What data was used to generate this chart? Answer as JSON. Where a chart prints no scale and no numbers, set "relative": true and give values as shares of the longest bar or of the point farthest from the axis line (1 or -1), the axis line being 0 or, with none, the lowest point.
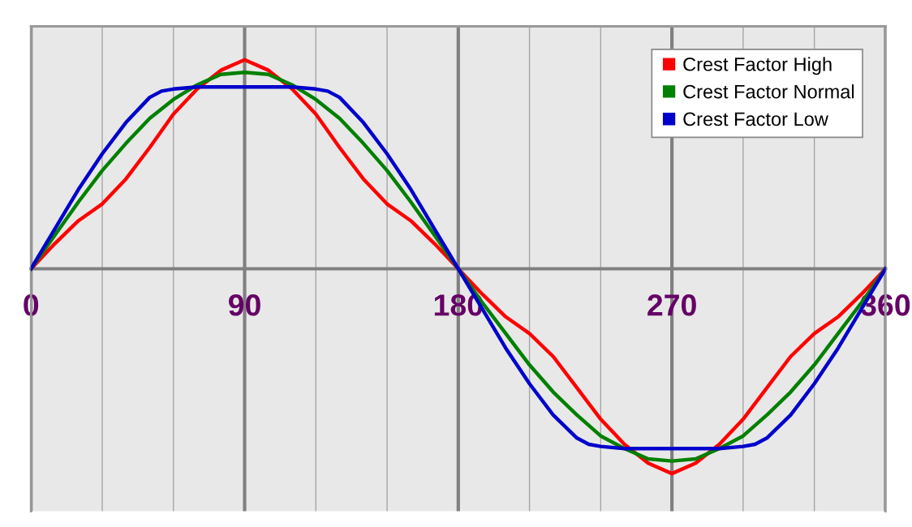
{
  "chart_data": {
    "type": "line",
    "relative": true,
    "x": [
      0,
      10,
      20,
      30,
      40,
      50,
      60,
      70,
      80,
      90,
      100,
      110,
      120,
      130,
      140,
      150,
      160,
      170,
      180,
      190,
      200,
      210,
      220,
      230,
      240,
      250,
      260,
      270,
      280,
      290,
      300,
      310,
      320,
      330,
      340,
      350,
      360
    ],
    "xlim": [
      0,
      360
    ],
    "xticks": [
      0,
      {
        "value": 30,
        "label": null
      },
      {
        "value": 60,
        "label": null
      },
      90,
      {
        "value": 120,
        "label": null
      },
      {
        "value": 150,
        "label": null
      },
      180,
      {
        "value": 210,
        "label": null
      },
      {
        "value": 240,
        "label": null
      },
      270,
      {
        "value": 300,
        "label": null
      },
      {
        "value": 330,
        "label": null
      },
      360
    ],
    "grid": "x",
    "legend": "top right",
    "line_style": "solid",
    "marker": "none",
    "series": [
      {
        "name": "Crest Factor High",
        "color": "#ff0000",
        "values": [
          0,
          0.12,
          0.23,
          0.31,
          0.43,
          0.58,
          0.74,
          0.86,
          0.95,
          1.0,
          0.95,
          0.86,
          0.74,
          0.58,
          0.43,
          0.31,
          0.23,
          0.12,
          0,
          -0.12,
          -0.23,
          -0.31,
          -0.42,
          -0.57,
          -0.72,
          -0.84,
          -0.93,
          -0.98,
          -0.93,
          -0.84,
          -0.72,
          -0.57,
          -0.42,
          -0.31,
          -0.23,
          -0.12,
          0
        ]
      },
      {
        "name": "Crest Factor Normal",
        "color": "#008000",
        "values": [
          0,
          0.16,
          0.32,
          0.47,
          0.6,
          0.72,
          0.81,
          0.88,
          0.93,
          0.94,
          0.93,
          0.88,
          0.81,
          0.72,
          0.6,
          0.47,
          0.32,
          0.16,
          0,
          -0.16,
          -0.31,
          -0.46,
          -0.59,
          -0.7,
          -0.8,
          -0.86,
          -0.91,
          -0.92,
          -0.91,
          -0.86,
          -0.8,
          -0.7,
          -0.59,
          -0.46,
          -0.31,
          -0.16,
          0
        ]
      },
      {
        "name": "Crest Factor Low",
        "color": "#0000cc",
        "x": [
          0,
          10,
          20,
          30,
          40,
          50,
          55,
          60,
          70,
          80,
          90,
          100,
          110,
          120,
          125,
          130,
          140,
          150,
          160,
          170,
          180,
          190,
          200,
          210,
          220,
          230,
          235,
          240,
          250,
          260,
          270,
          280,
          290,
          300,
          305,
          310,
          320,
          330,
          340,
          350,
          360
        ],
        "values": [
          0,
          0.19,
          0.38,
          0.55,
          0.7,
          0.82,
          0.85,
          0.86,
          0.87,
          0.87,
          0.87,
          0.87,
          0.87,
          0.86,
          0.85,
          0.82,
          0.7,
          0.55,
          0.38,
          0.19,
          0,
          -0.19,
          -0.38,
          -0.55,
          -0.7,
          -0.81,
          -0.84,
          -0.85,
          -0.86,
          -0.86,
          -0.86,
          -0.86,
          -0.86,
          -0.85,
          -0.84,
          -0.81,
          -0.7,
          -0.55,
          -0.38,
          -0.19,
          0
        ]
      }
    ]
  }
}
